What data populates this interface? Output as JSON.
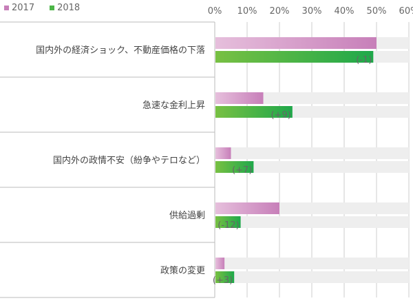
{
  "chart_data": {
    "type": "bar",
    "orientation": "horizontal",
    "categories": [
      "国内外の経済ショック、不動産価格の下落",
      "急速な金利上昇",
      "国内外の政情不安（紛争やテロなど）",
      "供給過剰",
      "政策の変更"
    ],
    "series": [
      {
        "name": "2017",
        "values": [
          50,
          15,
          5,
          20,
          3
        ],
        "color": "#c77fb9"
      },
      {
        "name": "2018",
        "values": [
          49,
          24,
          12,
          8,
          6
        ],
        "color": "#4cb648"
      }
    ],
    "annotations": [
      "(-1)",
      "(+9)",
      "(+7)",
      "(-12)",
      "(+3)"
    ],
    "xlim": [
      0,
      60
    ],
    "xticks": [
      "0%",
      "10%",
      "20%",
      "30%",
      "40%",
      "50%",
      "60%"
    ],
    "grid": true,
    "legend": "top-left"
  }
}
